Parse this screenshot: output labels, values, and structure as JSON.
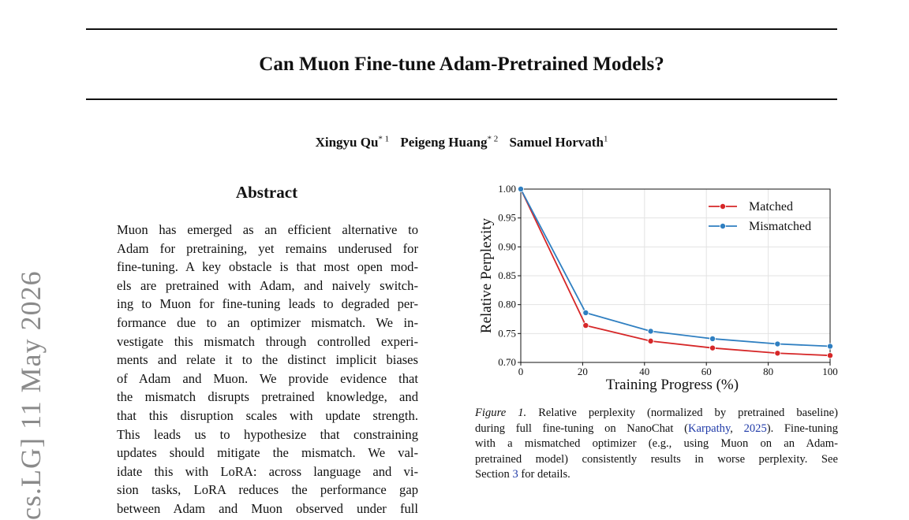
{
  "sidebar_text": "cs.LG]  11 May 2026",
  "title": "Can Muon Fine-tune Adam-Pretrained Models?",
  "authors": [
    {
      "name": "Xingyu Qu",
      "aff": "* 1"
    },
    {
      "name": "Peigeng Huang",
      "aff": "* 2"
    },
    {
      "name": "Samuel Horvath",
      "aff": "1"
    }
  ],
  "abstract": {
    "heading": "Abstract",
    "lines": [
      "Muon has emerged as an efficient alternative to",
      "Adam for pretraining, yet remains underused for",
      "fine-tuning. A key obstacle is that most open mod-",
      "els are pretrained with Adam, and naively switch-",
      "ing to Muon for fine-tuning leads to degraded per-",
      "formance due to an optimizer mismatch. We in-",
      "vestigate this mismatch through controlled experi-",
      "ments and relate it to the distinct implicit biases",
      "of Adam and Muon. We provide evidence that",
      "the mismatch disrupts pretrained knowledge, and",
      "that this disruption scales with update strength.",
      "This leads us to hypothesize that constraining",
      "updates should mitigate the mismatch. We val-",
      "idate this with LoRA: across language and vi-",
      "sion tasks, LoRA reduces the performance gap",
      "between Adam and Muon observed under full"
    ]
  },
  "caption": {
    "label": "Figure 1.",
    "line1_rest": "Relative perplexity (normalized by pretrained baseline)",
    "line2_pre": "during full fine-tuning on NanoChat (",
    "cite_author": "Karpathy",
    "cite_sep": ", ",
    "cite_year": "2025",
    "line2_post": "). Fine-tuning",
    "line3": "with a mismatched optimizer (e.g., using Muon on an Adam-",
    "line4": "pretrained model) consistently results in worse perplexity.  See",
    "line5_pre": "Section ",
    "section_ref": "3",
    "line5_post": " for details."
  },
  "chart_data": {
    "type": "line",
    "xlabel": "Training Progress (%)",
    "ylabel": "Relative Perplexity",
    "xlim": [
      0,
      100
    ],
    "ylim": [
      0.7,
      1.0
    ],
    "x_ticks": [
      "0",
      "20",
      "40",
      "60",
      "80",
      "100"
    ],
    "y_ticks": [
      "0.70",
      "0.75",
      "0.80",
      "0.85",
      "0.90",
      "0.95",
      "1.00"
    ],
    "grid": true,
    "legend_position": "top-right",
    "x": [
      0,
      21,
      42,
      62,
      83,
      100
    ],
    "series": [
      {
        "name": "Matched",
        "color": "#d62728",
        "values": [
          1.0,
          0.764,
          0.737,
          0.725,
          0.716,
          0.712
        ]
      },
      {
        "name": "Mismatched",
        "color": "#2f7fc1",
        "values": [
          1.0,
          0.786,
          0.754,
          0.741,
          0.732,
          0.728
        ]
      }
    ]
  }
}
